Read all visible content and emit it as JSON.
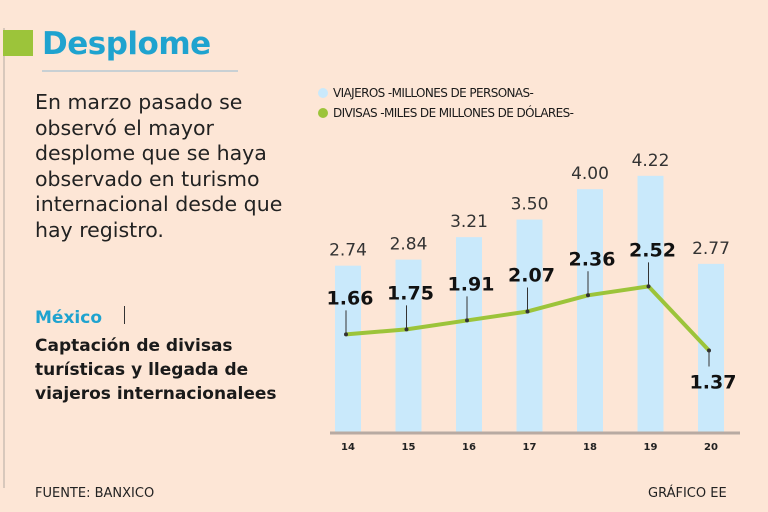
{
  "header": {
    "title": "Desplome"
  },
  "lead_text": "En marzo pasado se observó el mayor desplome que se haya observado en turismo internacional desde que hay registro.",
  "country": "México",
  "subtitle": "Captación de divisas turísticas y llegada de viajeros internacionalees",
  "footer": {
    "source": "FUENTE: BANXICO",
    "credit": "GRÁFICO EE"
  },
  "colors": {
    "bars": "#c9e9fb",
    "line": "#9cc43a",
    "title": "#1fa3cf"
  },
  "chart_data": {
    "type": "bar",
    "categories": [
      "14",
      "15",
      "16",
      "17",
      "18",
      "19",
      "20"
    ],
    "series": [
      {
        "name": "VIAJEROS -MILLONES DE PERSONAS-",
        "type": "bar",
        "values": [
          2.74,
          2.84,
          3.21,
          3.5,
          4.0,
          4.22,
          2.77
        ],
        "labels": [
          "2.74",
          "2.84",
          "3.21",
          "3.50",
          "4.00",
          "4.22",
          "2.77"
        ]
      },
      {
        "name": "DIVISAS -MILES DE MILLONES DE DÓLARES-",
        "type": "line",
        "values": [
          1.66,
          1.75,
          1.91,
          2.07,
          2.36,
          2.52,
          1.37
        ],
        "labels": [
          "1.66",
          "1.75",
          "1.91",
          "2.07",
          "2.36",
          "2.52",
          "1.37"
        ]
      }
    ],
    "legend_position": "top",
    "grid": false
  }
}
